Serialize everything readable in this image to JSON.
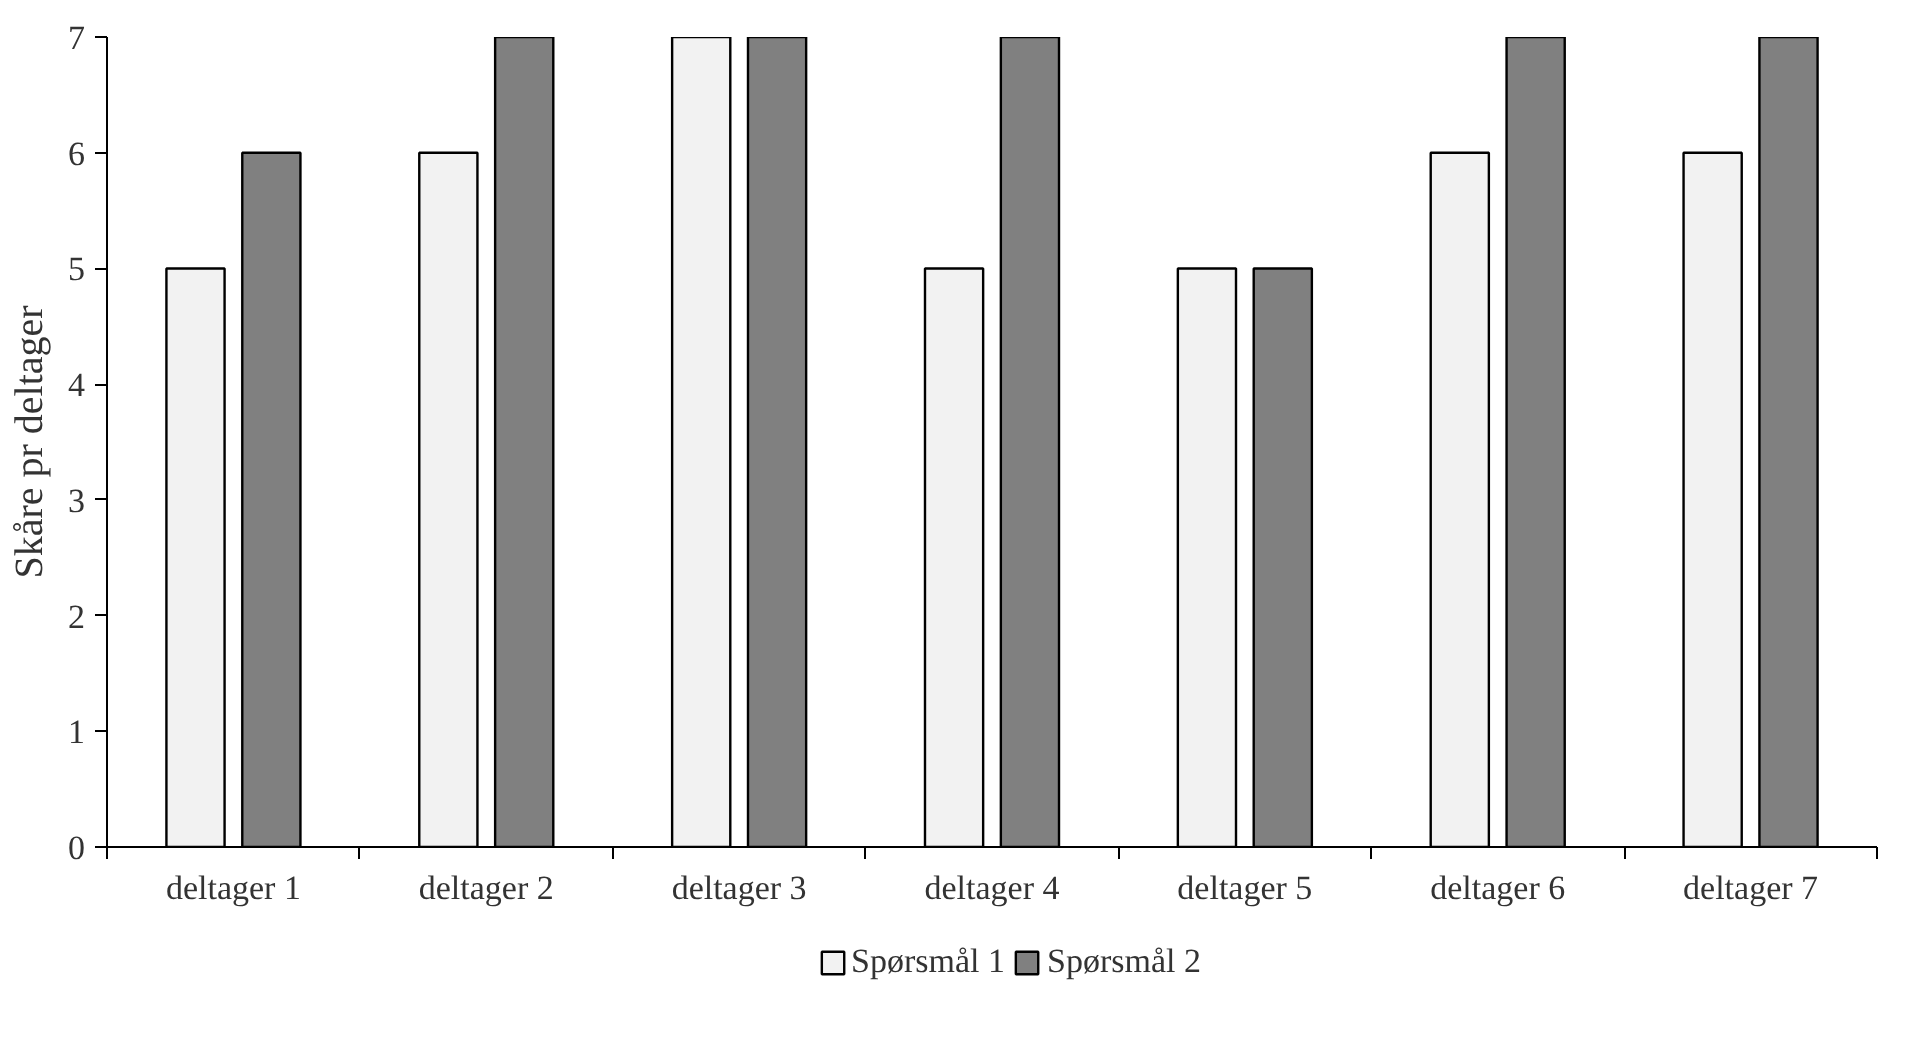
{
  "chart_data": {
    "type": "bar",
    "ylabel": "Skåre pr deltager",
    "categories": [
      "deltager 1",
      "deltager 2",
      "deltager 3",
      "deltager 4",
      "deltager 5",
      "deltager 6",
      "deltager 7"
    ],
    "series": [
      {
        "name": "Spørsmål 1",
        "color": "#f2f2f2",
        "values": [
          5,
          6,
          7,
          5,
          5,
          6,
          6
        ]
      },
      {
        "name": "Spørsmål 2",
        "color": "#808080",
        "values": [
          6,
          7,
          7,
          7,
          5,
          7,
          7
        ]
      }
    ],
    "ylim": [
      0,
      7
    ],
    "yticks": [
      0,
      1,
      2,
      3,
      4,
      5,
      6,
      7
    ],
    "grid": false,
    "legend": "bottom"
  }
}
